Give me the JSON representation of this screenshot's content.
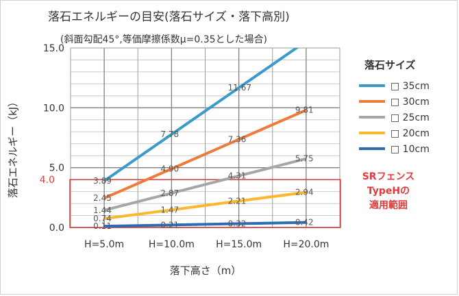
{
  "chart_data": {
    "type": "line",
    "title": "落石エネルギーの目安(落石サイズ・落下高別)",
    "subtitle": "(斜面勾配45°,等価摩擦係数μ=0.35とした場合)",
    "xlabel": "落下高さ（m）",
    "ylabel": "落石エネルギー（kJ）",
    "categories": [
      "H=5.0m",
      "H=10.0m",
      "H=15.0m",
      "H=20.0m"
    ],
    "ylim": [
      0,
      15
    ],
    "yticks": [
      "0.0",
      "5.0",
      "10.0",
      "15.0"
    ],
    "grid": true,
    "legend_title": "落石サイズ",
    "legend_position": "right",
    "series": [
      {
        "name": "□ 35cm",
        "color": "#3a9ac9",
        "values": [
          3.89,
          7.78,
          11.67,
          15.56
        ],
        "labels": [
          "3.89",
          "7.78",
          "11.67",
          ""
        ]
      },
      {
        "name": "□ 30cm",
        "color": "#ee7b3c",
        "values": [
          2.45,
          4.9,
          7.36,
          9.81
        ],
        "labels": [
          "2.45",
          "4.90",
          "7.36",
          "9.81"
        ]
      },
      {
        "name": "□ 25cm",
        "color": "#a6a6a6",
        "values": [
          1.44,
          2.87,
          4.31,
          5.75
        ],
        "labels": [
          "1.44",
          "2.87",
          "4.31",
          "5.75"
        ]
      },
      {
        "name": "□ 20cm",
        "color": "#fbb72f",
        "values": [
          0.74,
          1.47,
          2.21,
          2.94
        ],
        "labels": [
          "0.74",
          "1.47",
          "2.21",
          "2.94"
        ]
      },
      {
        "name": "□ 10cm",
        "color": "#2d6bb5",
        "values": [
          0.11,
          0.21,
          0.32,
          0.42
        ],
        "labels": [
          "0.11",
          "0.21",
          "0.32",
          "0.42"
        ]
      }
    ],
    "threshold": {
      "value": 4.0,
      "label": "4.0",
      "color": "#e03a3a",
      "annotation": [
        "SRフェンス",
        "TypeHの",
        "適用範囲"
      ]
    }
  }
}
